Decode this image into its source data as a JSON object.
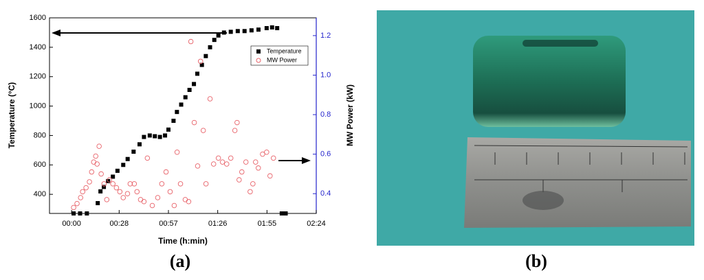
{
  "chart_data": {
    "type": "scatter",
    "xlabel": "Time (h:min)",
    "ylabel": "Temperature (°C)",
    "y2label": "MW Power (kW)",
    "xlim": [
      -13,
      144
    ],
    "xticks": [
      {
        "value": 0,
        "label": "00:00"
      },
      {
        "value": 28,
        "label": "00:28"
      },
      {
        "value": 57,
        "label": "00:57"
      },
      {
        "value": 86,
        "label": "01:26"
      },
      {
        "value": 115,
        "label": "01:55"
      },
      {
        "value": 144,
        "label": "02:24"
      }
    ],
    "ylim": [
      270,
      1600
    ],
    "yticks": [
      400,
      600,
      800,
      1000,
      1200,
      1400,
      1600
    ],
    "y2lim": [
      0.3,
      1.29
    ],
    "y2ticks": [
      0.4,
      0.6,
      0.8,
      1.0,
      1.2
    ],
    "y2color": "#2222cc",
    "legend": "upper right",
    "series": [
      {
        "name": "Temperature",
        "color": "#000000",
        "marker": "square",
        "x": [
          1.2,
          5,
          9,
          15.4,
          17,
          19,
          21.5,
          24.3,
          27,
          30.4,
          33,
          36.5,
          40,
          42.6,
          46,
          49,
          52,
          55,
          57,
          60,
          62,
          64.5,
          67,
          69.4,
          72,
          74,
          76.7,
          79,
          81.5,
          84,
          86.4,
          89.7,
          93.7,
          97.8,
          101.8,
          105.9,
          110,
          114.8,
          118,
          121,
          123.7,
          126
        ],
        "values": [
          270,
          270,
          270,
          340,
          420,
          450,
          490,
          520,
          560,
          600,
          640,
          690,
          740,
          790,
          800,
          795,
          790,
          800,
          840,
          900,
          960,
          1010,
          1060,
          1110,
          1150,
          1220,
          1280,
          1340,
          1400,
          1450,
          1480,
          1500,
          1505,
          1510,
          1510,
          1515,
          1520,
          1530,
          1535,
          1530,
          270,
          270
        ]
      },
      {
        "name": "MW Power",
        "color": "#e8636a",
        "marker": "circle",
        "axis": "y2",
        "x": [
          1.2,
          3.2,
          5.3,
          6.5,
          8.5,
          10.5,
          11.8,
          13,
          14.2,
          15,
          16.2,
          17.4,
          19.1,
          20.7,
          22.3,
          24.3,
          26.4,
          28.4,
          30.4,
          32.9,
          34.5,
          36.9,
          38.5,
          40.6,
          42.6,
          44.6,
          47.5,
          50.7,
          53.1,
          55.6,
          58,
          60.4,
          62.1,
          64.1,
          66.9,
          68.9,
          70.2,
          72.2,
          74.2,
          75.9,
          77.5,
          79.1,
          81.5,
          83.6,
          86.4,
          88.8,
          91.3,
          93.7,
          96.1,
          97.4,
          98.6,
          100.2,
          102.6,
          105.1,
          106.7,
          108.3,
          109.9,
          112.4,
          114.8,
          116.8,
          118.8
        ],
        "values": [
          0.33,
          0.35,
          0.38,
          0.41,
          0.43,
          0.46,
          0.51,
          0.56,
          0.59,
          0.55,
          0.64,
          0.5,
          0.45,
          0.37,
          0.47,
          0.45,
          0.43,
          0.41,
          0.38,
          0.4,
          0.45,
          0.45,
          0.41,
          0.37,
          0.36,
          0.58,
          0.34,
          0.38,
          0.45,
          0.51,
          0.41,
          0.34,
          0.61,
          0.45,
          0.37,
          0.36,
          1.17,
          0.76,
          0.54,
          1.07,
          0.72,
          0.45,
          0.88,
          0.55,
          0.58,
          0.56,
          0.55,
          0.58,
          0.72,
          0.76,
          0.47,
          0.51,
          0.56,
          0.41,
          0.45,
          0.56,
          0.53,
          0.6,
          0.61,
          0.49,
          0.58
        ]
      }
    ]
  },
  "figure": {
    "panel_labels": [
      "(a)",
      "(b)"
    ]
  }
}
